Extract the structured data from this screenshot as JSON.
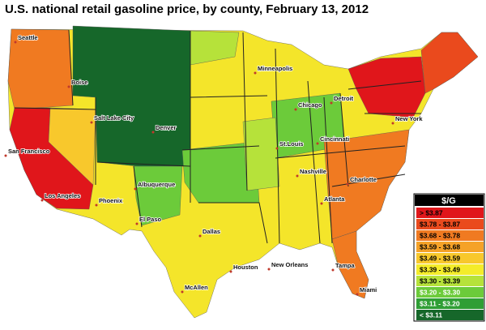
{
  "title": "U.S. national retail gasoline price, by county, February 13, 2012",
  "cities": [
    "Seattle",
    "Boise",
    "Salt Lake City",
    "Denver",
    "San Francisco",
    "Los Angeles",
    "Phoenix",
    "Albuquerque",
    "El Paso",
    "Dallas",
    "Houston",
    "McAllen",
    "Minneapolis",
    "Chicago",
    "Detroit",
    "St.Louis",
    "Cincinnati",
    "Nashville",
    "Atlanta",
    "Charlotte",
    "New Orleans",
    "Tampa",
    "Miami",
    "New York"
  ],
  "legend": {
    "title": "$/G",
    "items": [
      {
        "label": "> $3.87",
        "color": "#e0161b"
      },
      {
        "label": "$3.78 - $3.87",
        "color": "#ea4a1d"
      },
      {
        "label": "$3.68 - $3.78",
        "color": "#f07a21"
      },
      {
        "label": "$3.59 - $3.68",
        "color": "#f5a228"
      },
      {
        "label": "$3.49 - $3.59",
        "color": "#f8c82c"
      },
      {
        "label": "$3.39 - $3.49",
        "color": "#f4ec2a"
      },
      {
        "label": "$3.30 - $3.39",
        "color": "#b6e23a"
      },
      {
        "label": "$3.20 - $3.30",
        "color": "#6ccb3a"
      },
      {
        "label": "$3.11 - $3.20",
        "color": "#2f9e35"
      },
      {
        "label": "< $3.11",
        "color": "#16672a"
      }
    ]
  }
}
